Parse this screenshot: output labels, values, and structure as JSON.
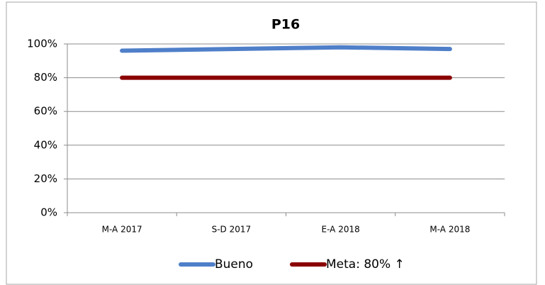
{
  "chart_data": {
    "type": "line",
    "title": "P16",
    "categories": [
      "M-A 2017",
      "S-D 2017",
      "E-A 2018",
      "M-A 2018"
    ],
    "series": [
      {
        "name": "Bueno",
        "color": "#4f7fc9",
        "values": [
          96,
          97,
          98,
          97
        ]
      },
      {
        "name": "Meta: 80% ↑",
        "color": "#8b0000",
        "values": [
          80,
          80,
          80,
          80
        ]
      }
    ],
    "ylim": [
      0,
      100
    ],
    "yticks": [
      {
        "value": 0,
        "label": "0%"
      },
      {
        "value": 20,
        "label": "20%"
      },
      {
        "value": 40,
        "label": "40%"
      },
      {
        "value": 60,
        "label": "60%"
      },
      {
        "value": 80,
        "label": "80%"
      },
      {
        "value": 100,
        "label": "100%"
      }
    ],
    "grid": true,
    "legend": "bottom"
  }
}
